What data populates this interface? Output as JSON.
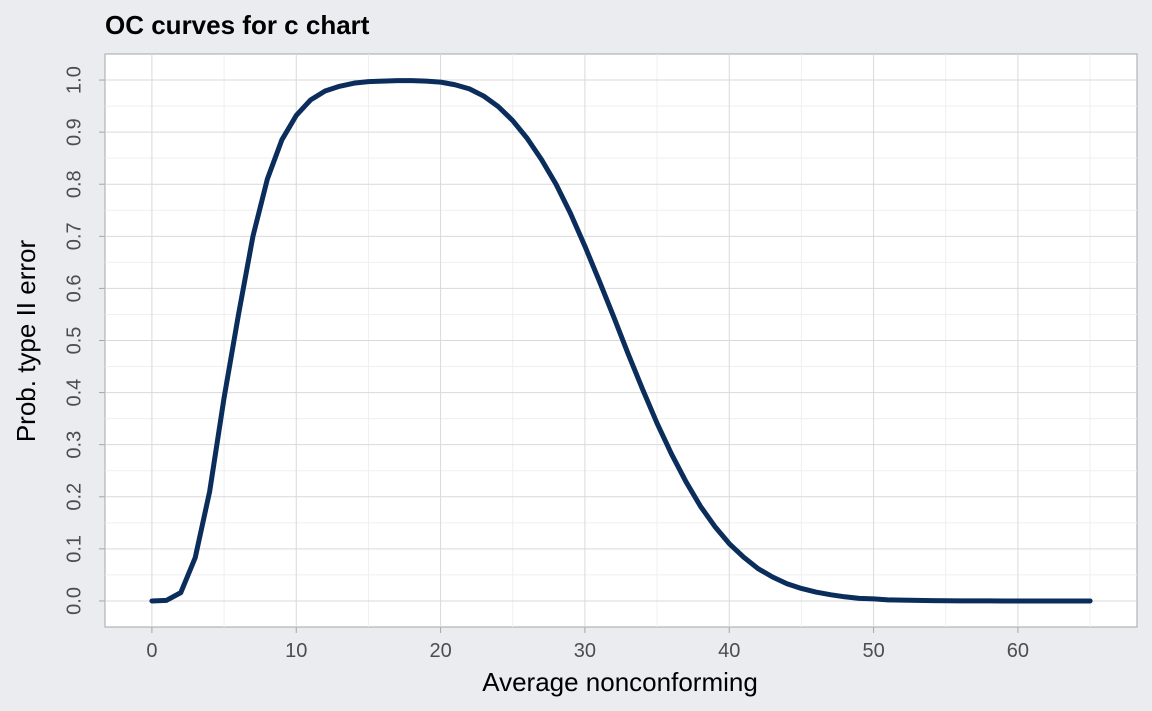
{
  "chart_data": {
    "type": "line",
    "title": "OC curves for c chart",
    "xlabel": "Average nonconforming",
    "ylabel": "Prob. type II error",
    "xlim": [
      -3.25,
      68.25
    ],
    "ylim": [
      -0.05,
      1.05
    ],
    "x_ticks": [
      "0",
      "10",
      "20",
      "30",
      "40",
      "50",
      "60"
    ],
    "y_ticks": [
      "0.0",
      "0.1",
      "0.2",
      "0.3",
      "0.4",
      "0.5",
      "0.6",
      "0.7",
      "0.8",
      "0.9",
      "1.0"
    ],
    "grid": true,
    "legend": "none",
    "colors": {
      "line": "#0b2d5c",
      "panel": "#ffffff",
      "background": "#ebecf0",
      "grid_major": "#d9d9d9",
      "grid_minor": "#efefef"
    },
    "series": [
      {
        "x": [
          0,
          1,
          2,
          3,
          4,
          5,
          6,
          7,
          8,
          9,
          10,
          11,
          12,
          13,
          14,
          15,
          16,
          17,
          18,
          19,
          20,
          21,
          22,
          23,
          24,
          25,
          26,
          27,
          28,
          29,
          30,
          31,
          32,
          33,
          34,
          35,
          36,
          37,
          38,
          39,
          40,
          41,
          42,
          43,
          44,
          45,
          46,
          47,
          48,
          49,
          50,
          51,
          52,
          53,
          54,
          55,
          56,
          57,
          58,
          59,
          60,
          61,
          62,
          63,
          64,
          65
        ],
        "y": [
          0,
          0.001,
          0.016,
          0.083,
          0.21,
          0.39,
          0.55,
          0.7,
          0.81,
          0.885,
          0.932,
          0.962,
          0.979,
          0.988,
          0.994,
          0.997,
          0.998,
          0.999,
          0.999,
          0.998,
          0.996,
          0.991,
          0.983,
          0.969,
          0.949,
          0.922,
          0.888,
          0.847,
          0.8,
          0.744,
          0.681,
          0.614,
          0.545,
          0.474,
          0.406,
          0.341,
          0.282,
          0.229,
          0.182,
          0.143,
          0.11,
          0.084,
          0.062,
          0.046,
          0.033,
          0.024,
          0.017,
          0.012,
          0.008,
          0.005,
          0.004,
          0.002,
          0.0015,
          0.001,
          0.0006,
          0.0004,
          0.0002,
          0.0001,
          0.0001,
          0,
          0,
          0,
          0,
          0,
          0,
          0
        ]
      }
    ]
  }
}
